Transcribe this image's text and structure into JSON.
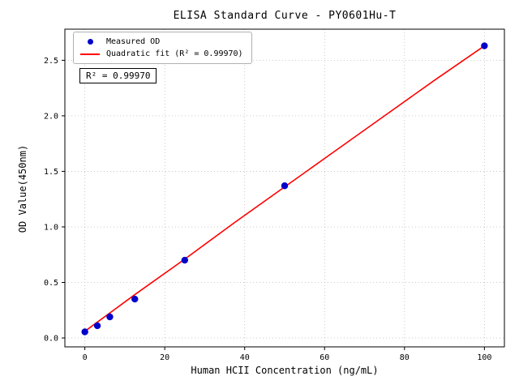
{
  "chart_data": {
    "type": "scatter",
    "title": "ELISA Standard Curve - PY0601Hu-T",
    "xlabel": "Human HCII Concentration (ng/mL)",
    "ylabel": "OD Value(450nm)",
    "xlim": [
      -5,
      105
    ],
    "ylim": [
      -0.08,
      2.78
    ],
    "x_ticks": [
      0,
      20,
      40,
      60,
      80,
      100
    ],
    "x_tick_labels": [
      "0",
      "20",
      "40",
      "60",
      "80",
      "100"
    ],
    "y_ticks": [
      0.0,
      0.5,
      1.0,
      1.5,
      2.0,
      2.5
    ],
    "y_tick_labels": [
      "0.0",
      "0.5",
      "1.0",
      "1.5",
      "2.0",
      "2.5"
    ],
    "grid": true,
    "grid_style": "dotted",
    "grid_color": "#bbbbbb",
    "legend_position": "upper left",
    "annotation": "R² = 0.99970",
    "series": [
      {
        "name": "Measured OD",
        "kind": "scatter",
        "color": "#0000cc",
        "x": [
          0,
          3.125,
          6.25,
          12.5,
          25,
          50,
          100
        ],
        "y": [
          0.055,
          0.11,
          0.19,
          0.35,
          0.7,
          1.37,
          2.63
        ]
      },
      {
        "name": "Quadratic fit (R² = 0.99970)",
        "kind": "line",
        "color": "#ff0000",
        "x": [
          0,
          12.5,
          25,
          37.5,
          50,
          62.5,
          75,
          87.5,
          100
        ],
        "y": [
          0.06,
          0.39,
          0.71,
          1.04,
          1.36,
          1.68,
          2.0,
          2.32,
          2.63
        ]
      }
    ]
  }
}
